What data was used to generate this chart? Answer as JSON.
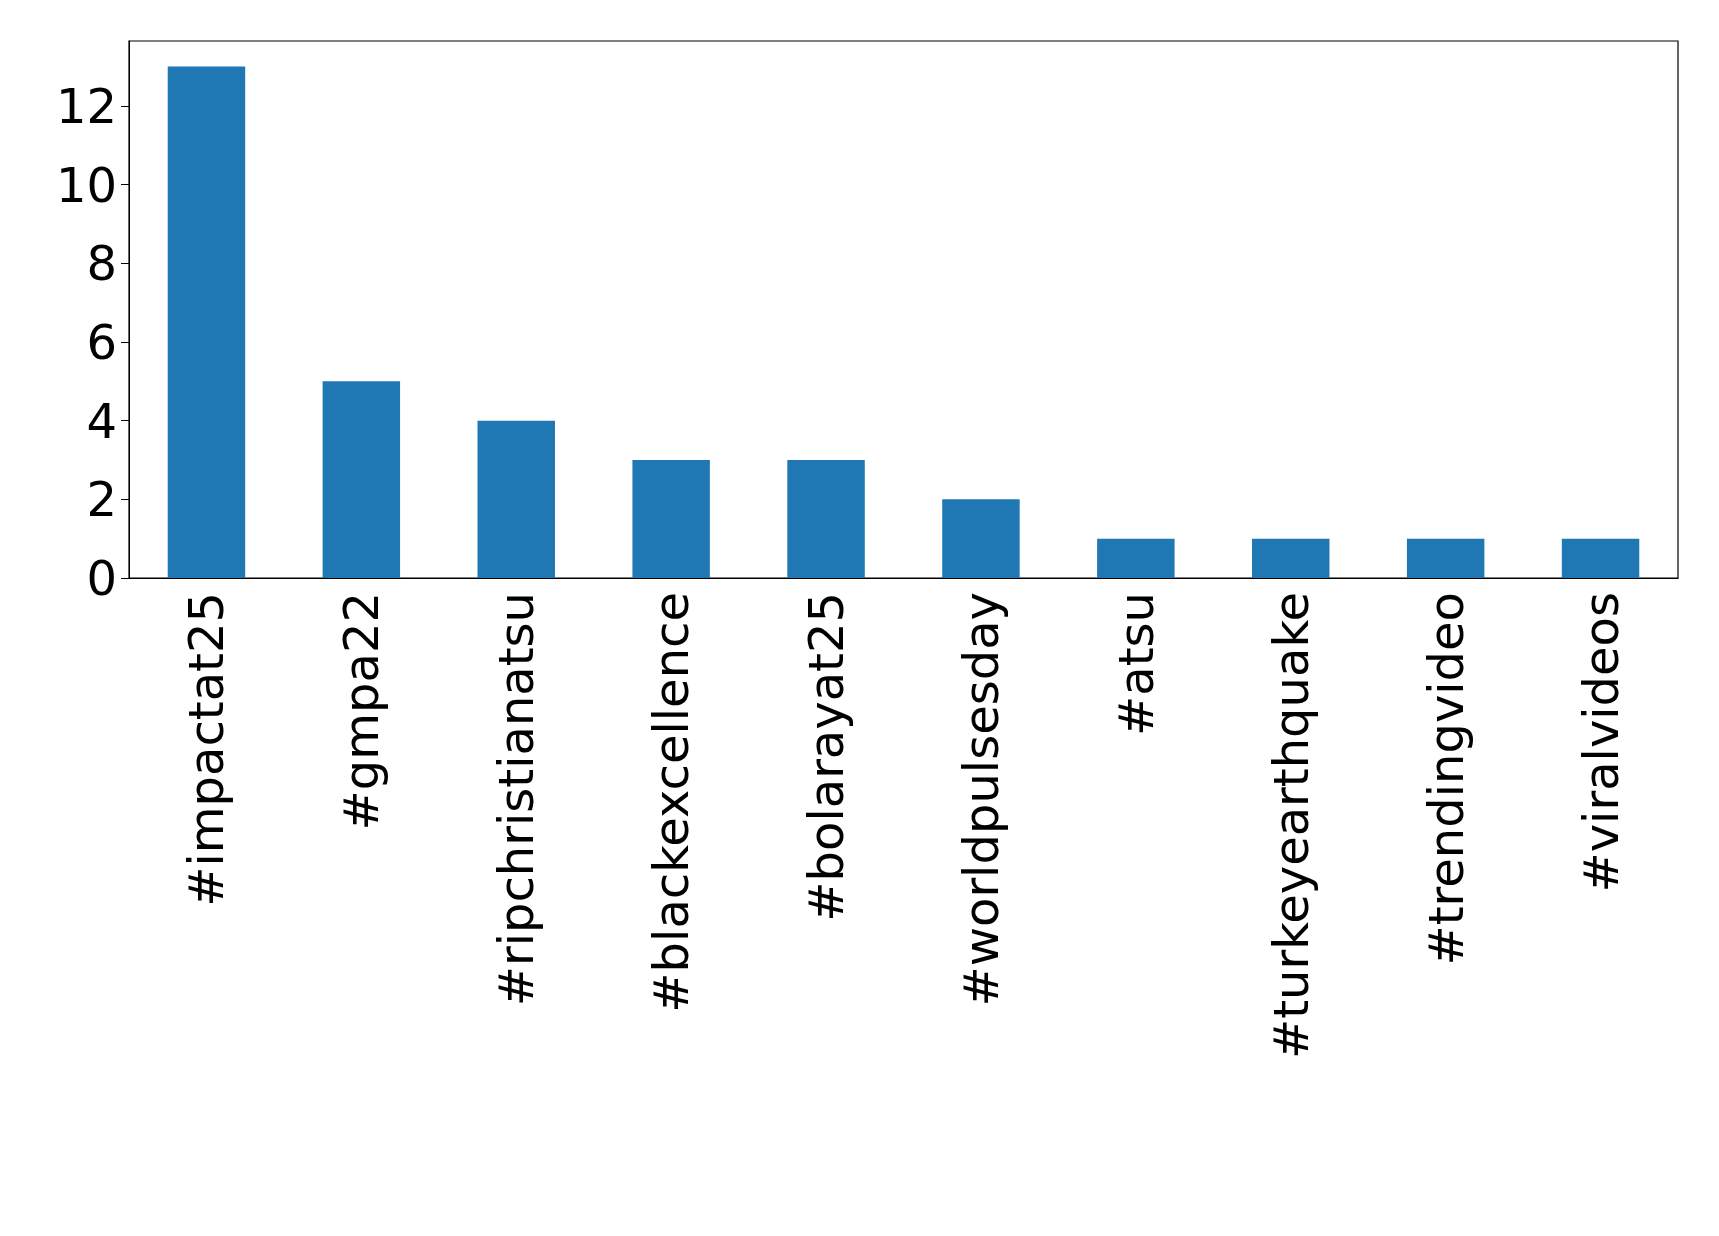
{
  "chart_data": {
    "type": "bar",
    "categories": [
      "#impactat25",
      "#gmpa22",
      "#ripchristianatsu",
      "#blackexcellence",
      "#bolarayat25",
      "#worldpulsesday",
      "#atsu",
      "#turkeyearthquake",
      "#trendingvideo",
      "#viralvideos"
    ],
    "values": [
      13,
      5,
      4,
      3,
      3,
      2,
      1,
      1,
      1,
      1
    ],
    "color": "#1f77b4",
    "ylim": [
      0,
      13.65
    ],
    "yticks": [
      0,
      2,
      4,
      6,
      8,
      10,
      12
    ],
    "grid": false
  }
}
